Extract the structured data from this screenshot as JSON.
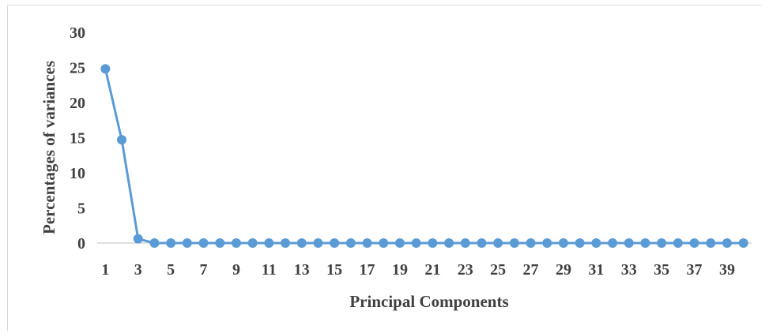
{
  "chart_data": {
    "type": "line",
    "xlabel": "Principal Components",
    "ylabel": "Percentages of variances",
    "ylim": [
      0,
      30
    ],
    "yticks": [
      0,
      5,
      10,
      15,
      20,
      25,
      30
    ],
    "x": [
      1,
      2,
      3,
      4,
      5,
      6,
      7,
      8,
      9,
      10,
      11,
      12,
      13,
      14,
      15,
      16,
      17,
      18,
      19,
      20,
      21,
      22,
      23,
      24,
      25,
      26,
      27,
      28,
      29,
      30,
      31,
      32,
      33,
      34,
      35,
      36,
      37,
      38,
      39,
      40
    ],
    "xtick_labels": [
      "1",
      "3",
      "5",
      "7",
      "9",
      "11",
      "13",
      "15",
      "17",
      "19",
      "21",
      "23",
      "25",
      "27",
      "29",
      "31",
      "33",
      "35",
      "37",
      "39"
    ],
    "series": [
      {
        "values": [
          24.8,
          14.7,
          0.6,
          0,
          0,
          0,
          0,
          0,
          0,
          0,
          0,
          0,
          0,
          0,
          0,
          0,
          0,
          0,
          0,
          0,
          0,
          0,
          0,
          0,
          0,
          0,
          0,
          0,
          0,
          0,
          0,
          0,
          0,
          0,
          0,
          0,
          0,
          0,
          0,
          0
        ],
        "color": "#5b9bd5",
        "marker": "circle"
      }
    ],
    "grid": false,
    "legend": "none"
  }
}
